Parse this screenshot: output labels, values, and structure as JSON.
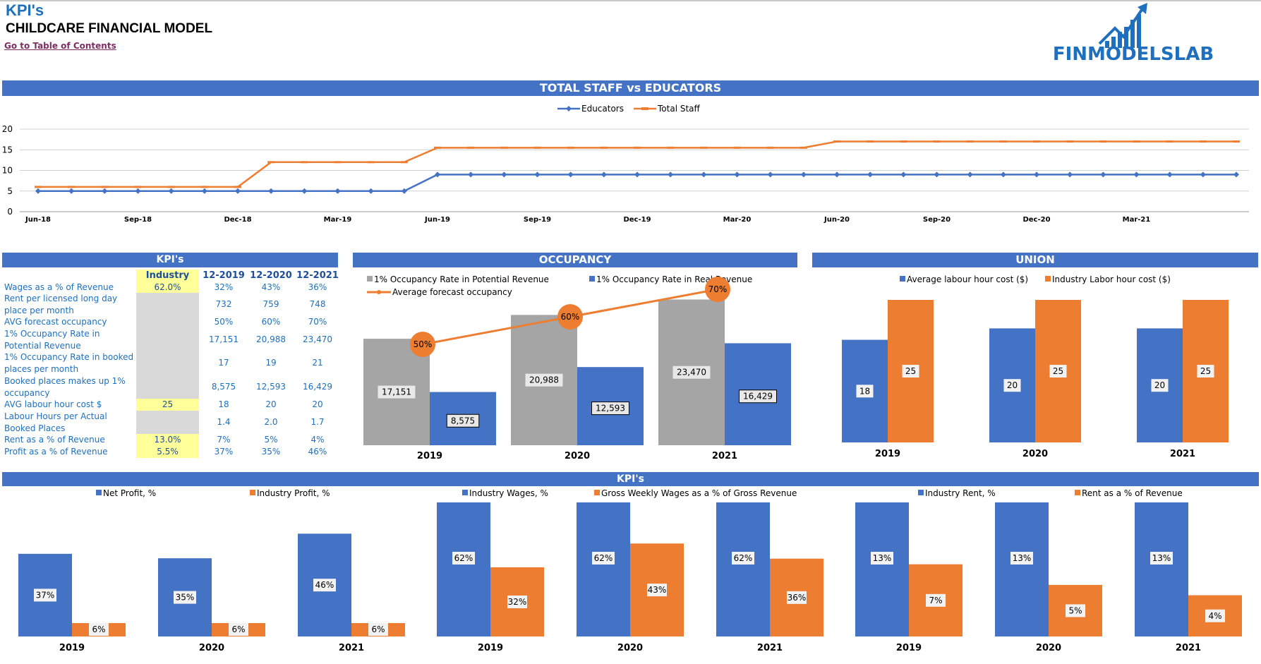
{
  "header": {
    "kpi_title": "KPI's",
    "model_title": "CHILDCARE FINANCIAL MODEL",
    "toc_link": "Go to Table of Contents",
    "logo_text": "FINMODELSLAB"
  },
  "colors": {
    "blue": "#4472c4",
    "orange": "#ed7d31",
    "gray": "#a5a5a5",
    "yellow": "#ffff99",
    "light_gray": "#d9d9d9",
    "label_blue": "#1f6fbf"
  },
  "staff_chart": {
    "title": "TOTAL STAFF vs EDUCATORS",
    "chart_data": {
      "type": "line",
      "x_labels": [
        "Jun-18",
        "Sep-18",
        "Dec-18",
        "Mar-19",
        "Jun-19",
        "Sep-19",
        "Dec-19",
        "Mar-20",
        "Jun-20",
        "Sep-20",
        "Dec-20",
        "Mar-21"
      ],
      "ylim": [
        0,
        20
      ],
      "yticks": [
        "0",
        "5",
        "10",
        "15",
        "20"
      ],
      "grid": true,
      "legend": "top-center",
      "series": [
        {
          "name": "Educators",
          "color": "#4472c4",
          "values": [
            5,
            5,
            5,
            5,
            5,
            5,
            5,
            5,
            5,
            5,
            5,
            5,
            9,
            9,
            9,
            9,
            9,
            9,
            9,
            9,
            9,
            9,
            9,
            9,
            9,
            9,
            9,
            9,
            9,
            9,
            9,
            9,
            9,
            9,
            9,
            9,
            9
          ]
        },
        {
          "name": "Total Staff",
          "color": "#ed7d31",
          "values": [
            6,
            6,
            6,
            6,
            6,
            6,
            6,
            12,
            12,
            12,
            12,
            12,
            15.5,
            15.5,
            15.5,
            15.5,
            15.5,
            15.5,
            15.5,
            15.5,
            15.5,
            15.5,
            15.5,
            15.5,
            17,
            17,
            17,
            17,
            17,
            17,
            17,
            17,
            17,
            17,
            17,
            17,
            17
          ]
        }
      ]
    }
  },
  "kpi_table": {
    "title": "KPI's",
    "headers": [
      "Industry",
      "12-2019",
      "12-2020",
      "12-2021"
    ],
    "rows": [
      {
        "label": "Wages as a % of Revenue",
        "industry": "62.0%",
        "v2019": "32%",
        "v2020": "43%",
        "v2021": "36%"
      },
      {
        "label": "Rent per licensed long day place per month",
        "industry": "",
        "v2019": "732",
        "v2020": "759",
        "v2021": "748"
      },
      {
        "label": "AVG forecast occupancy",
        "industry": "",
        "v2019": "50%",
        "v2020": "60%",
        "v2021": "70%"
      },
      {
        "label": "1% Occupancy Rate in Potential Revenue",
        "industry": "",
        "v2019": "17,151",
        "v2020": "20,988",
        "v2021": "23,470"
      },
      {
        "label": "1% Occupancy Rate in booked places per month",
        "industry": "",
        "v2019": "17",
        "v2020": "19",
        "v2021": "21"
      },
      {
        "label": "Booked places makes up 1% occupancy",
        "industry": "",
        "v2019": "8,575",
        "v2020": "12,593",
        "v2021": "16,429"
      },
      {
        "label": "AVG labour hour cost $",
        "industry": "25",
        "v2019": "18",
        "v2020": "20",
        "v2021": "20"
      },
      {
        "label": "Labour Hours per Actual Booked Places",
        "industry": "",
        "v2019": "1.4",
        "v2020": "2.0",
        "v2021": "1.7"
      },
      {
        "label": "Rent as a % of Revenue",
        "industry": "13.0%",
        "v2019": "7%",
        "v2020": "5%",
        "v2021": "4%"
      },
      {
        "label": "Profit as a % of Revenue",
        "industry": "5.5%",
        "v2019": "37%",
        "v2020": "35%",
        "v2021": "46%"
      }
    ]
  },
  "occupancy_chart": {
    "title": "OCCUPANCY",
    "chart_data": {
      "type": "bar",
      "categories": [
        "2019",
        "2020",
        "2021"
      ],
      "legend": "top",
      "series": [
        {
          "name": "1% Occupancy Rate in Potential Revenue",
          "color": "#a5a5a5",
          "values": [
            17151,
            20988,
            23470
          ],
          "labels": [
            "17,151",
            "20,988",
            "23,470"
          ]
        },
        {
          "name": "1% Occupancy Rate in Real Revenue",
          "color": "#4472c4",
          "values": [
            8575,
            12593,
            16429
          ],
          "labels": [
            "8,575",
            "12,593",
            "16,429"
          ]
        },
        {
          "name": "Average forecast occupancy",
          "color": "#ed7d31",
          "type": "line",
          "values": [
            0.5,
            0.6,
            0.7
          ],
          "labels": [
            "50%",
            "60%",
            "70%"
          ]
        }
      ]
    }
  },
  "union_chart": {
    "title": "UNION",
    "chart_data": {
      "type": "bar",
      "categories": [
        "2019",
        "2020",
        "2021"
      ],
      "legend": "top",
      "series": [
        {
          "name": "Average labour hour cost ($)",
          "color": "#4472c4",
          "values": [
            18,
            20,
            20
          ]
        },
        {
          "name": "Industry Labor hour cost ($)",
          "color": "#ed7d31",
          "values": [
            25,
            25,
            25
          ]
        }
      ]
    }
  },
  "kpi_band": {
    "title": "KPI's"
  },
  "profit_chart": {
    "chart_data": {
      "type": "bar",
      "categories": [
        "2019",
        "2020",
        "2021"
      ],
      "legend": "top",
      "series": [
        {
          "name": "Net Profit, %",
          "color": "#4472c4",
          "values": [
            37,
            35,
            46
          ],
          "labels": [
            "37%",
            "35%",
            "46%"
          ]
        },
        {
          "name": "Industry Profit, %",
          "color": "#ed7d31",
          "values": [
            6,
            6,
            6
          ],
          "labels": [
            "6%",
            "6%",
            "6%"
          ]
        }
      ]
    }
  },
  "wages_chart": {
    "chart_data": {
      "type": "bar",
      "categories": [
        "2019",
        "2020",
        "2021"
      ],
      "legend": "top",
      "series": [
        {
          "name": "Industry Wages, %",
          "color": "#4472c4",
          "values": [
            62,
            62,
            62
          ],
          "labels": [
            "62%",
            "62%",
            "62%"
          ]
        },
        {
          "name": "Gross Weekly Wages as a % of Gross Revenue",
          "color": "#ed7d31",
          "values": [
            32,
            43,
            36
          ],
          "labels": [
            "32%",
            "43%",
            "36%"
          ]
        }
      ]
    }
  },
  "rent_chart": {
    "chart_data": {
      "type": "bar",
      "categories": [
        "2019",
        "2020",
        "2021"
      ],
      "legend": "top",
      "series": [
        {
          "name": "Industry Rent, %",
          "color": "#4472c4",
          "values": [
            13,
            13,
            13
          ],
          "labels": [
            "13%",
            "13%",
            "13%"
          ]
        },
        {
          "name": "Rent as a % of Revenue",
          "color": "#ed7d31",
          "values": [
            7,
            5,
            4
          ],
          "labels": [
            "7%",
            "5%",
            "4%"
          ]
        }
      ]
    }
  }
}
